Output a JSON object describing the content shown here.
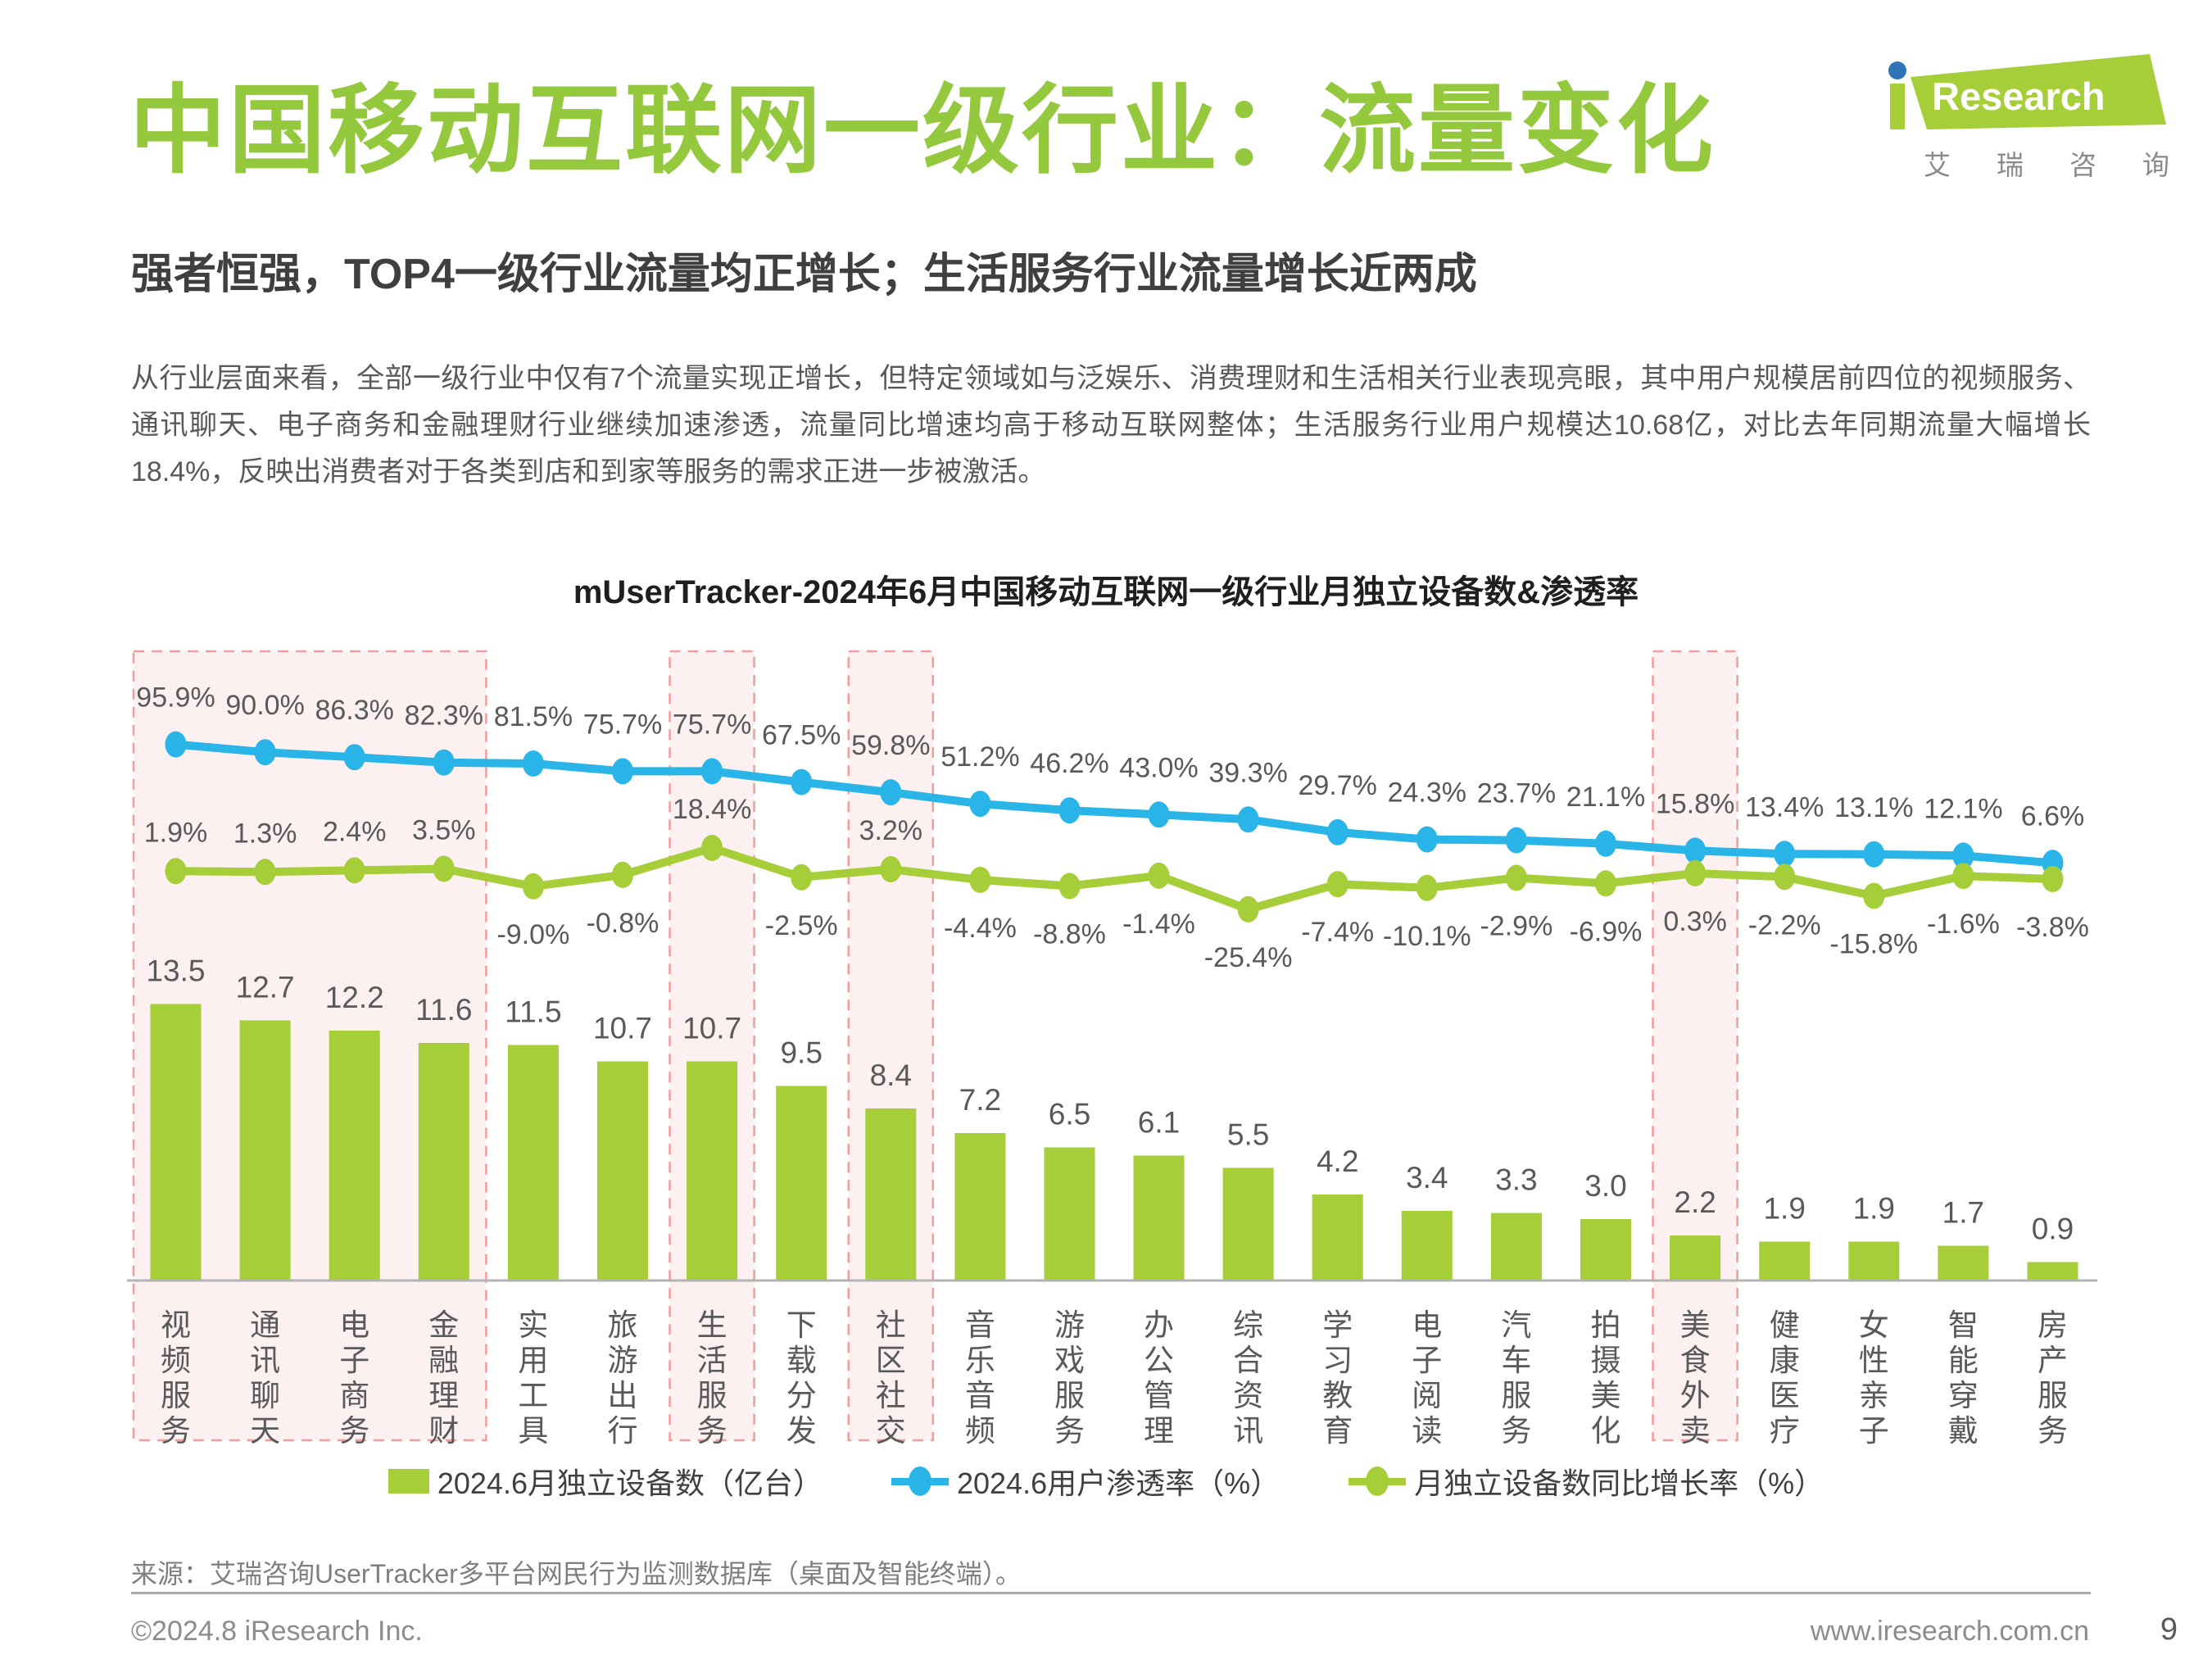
{
  "page": {
    "title": "中国移动互联网一级行业：流量变化",
    "subtitle": "强者恒强，TOP4一级行业流量均正增长；生活服务行业流量增长近两成",
    "paragraph": "从行业层面来看，全部一级行业中仅有7个流量实现正增长，但特定领域如与泛娱乐、消费理财和生活相关行业表现亮眼，其中用户规模居前四位的视频服务、通讯聊天、电子商务和金融理财行业继续加速渗透，流量同比增速均高于移动互联网整体；生活服务行业用户规模达10.68亿，对比去年同期流量大幅增长18.4%，反映出消费者对于各类到店和到家等服务的需求正进一步被激活。",
    "page_number": "9"
  },
  "logo": {
    "brand": "Research",
    "cn": "艾瑞咨询"
  },
  "chart_data": {
    "type": "bar+line",
    "title": "mUserTracker-2024年6月中国移动互联网一级行业月独立设备数&渗透率",
    "categories": [
      "视频服务",
      "通讯聊天",
      "电子商务",
      "金融理财",
      "实用工具",
      "旅游出行",
      "生活服务",
      "下载分发",
      "社区社交",
      "音乐音频",
      "游戏服务",
      "办公管理",
      "综合资讯",
      "学习教育",
      "电子阅读",
      "汽车服务",
      "拍摄美化",
      "美食外卖",
      "健康医疗",
      "女性亲子",
      "智能穿戴",
      "房产服务"
    ],
    "series": [
      {
        "name": "2024.6月独立设备数（亿台）",
        "type": "bar",
        "unit": "亿台",
        "values": [
          13.5,
          12.7,
          12.2,
          11.6,
          11.5,
          10.7,
          10.7,
          9.5,
          8.4,
          7.2,
          6.5,
          6.1,
          5.5,
          4.2,
          3.4,
          3.3,
          3.0,
          2.2,
          1.9,
          1.9,
          1.7,
          0.9
        ]
      },
      {
        "name": "2024.6用户渗透率（%）",
        "type": "line",
        "unit": "%",
        "values": [
          95.9,
          90.0,
          86.3,
          82.3,
          81.5,
          75.7,
          75.7,
          67.5,
          59.8,
          51.2,
          46.2,
          43.0,
          39.3,
          29.7,
          24.3,
          23.7,
          21.1,
          15.8,
          13.4,
          13.1,
          12.1,
          6.6
        ]
      },
      {
        "name": "月独立设备数同比增长率（%）",
        "type": "line",
        "unit": "%",
        "values": [
          1.9,
          1.3,
          2.4,
          3.5,
          -9.0,
          -0.8,
          18.4,
          -2.5,
          3.2,
          -4.4,
          -8.8,
          -1.4,
          -25.4,
          -7.4,
          -10.1,
          -2.9,
          -6.9,
          0.3,
          -2.2,
          -15.8,
          -1.6,
          -3.8
        ]
      }
    ],
    "highlighted_category_ranges": [
      [
        0,
        3
      ],
      [
        6,
        6
      ],
      [
        8,
        8
      ],
      [
        17,
        17
      ]
    ],
    "legend_position": "bottom",
    "grid": false
  },
  "source": "来源：艾瑞咨询UserTracker多平台网民行为监测数据库（桌面及智能终端）。",
  "footer": {
    "copyright": "©2024.8 iResearch Inc.",
    "website": "www.iresearch.com.cn"
  },
  "colors": {
    "green": "#a5ce39",
    "blue": "#29b5e8",
    "title_green": "#94c83d",
    "highlight_fill": "#fcf0f0",
    "highlight_border": "#f09d9d",
    "logo_dot_blue": "#2e75b6",
    "axis_gray": "#b3b3b3"
  }
}
